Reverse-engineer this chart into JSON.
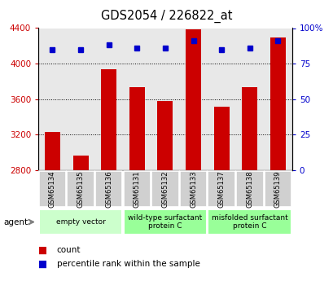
{
  "title": "GDS2054 / 226822_at",
  "categories": [
    "GSM65134",
    "GSM65135",
    "GSM65136",
    "GSM65131",
    "GSM65132",
    "GSM65133",
    "GSM65137",
    "GSM65138",
    "GSM65139"
  ],
  "bar_values": [
    3230,
    2960,
    3940,
    3730,
    3580,
    4390,
    3510,
    3730,
    4290
  ],
  "percentile_values": [
    85,
    85,
    88,
    86,
    86,
    91,
    85,
    86,
    91
  ],
  "ylim_left": [
    2800,
    4400
  ],
  "ylim_right": [
    0,
    100
  ],
  "yticks_left": [
    2800,
    3200,
    3600,
    4000,
    4400
  ],
  "yticks_right": [
    0,
    25,
    50,
    75,
    100
  ],
  "bar_color": "#cc0000",
  "dot_color": "#0000cc",
  "groups_def": [
    [
      0,
      2,
      "empty vector",
      "#ccffcc"
    ],
    [
      3,
      5,
      "wild-type surfactant\nprotein C",
      "#99ff99"
    ],
    [
      6,
      8,
      "misfolded surfactant\nprotein C",
      "#99ff99"
    ]
  ],
  "tick_label_color": "#cc0000",
  "right_tick_color": "#0000cc",
  "agent_label": "agent",
  "background_color": "#ffffff",
  "plot_bg_color": "#e8e8e8",
  "gray_box_color": "#d0d0d0"
}
